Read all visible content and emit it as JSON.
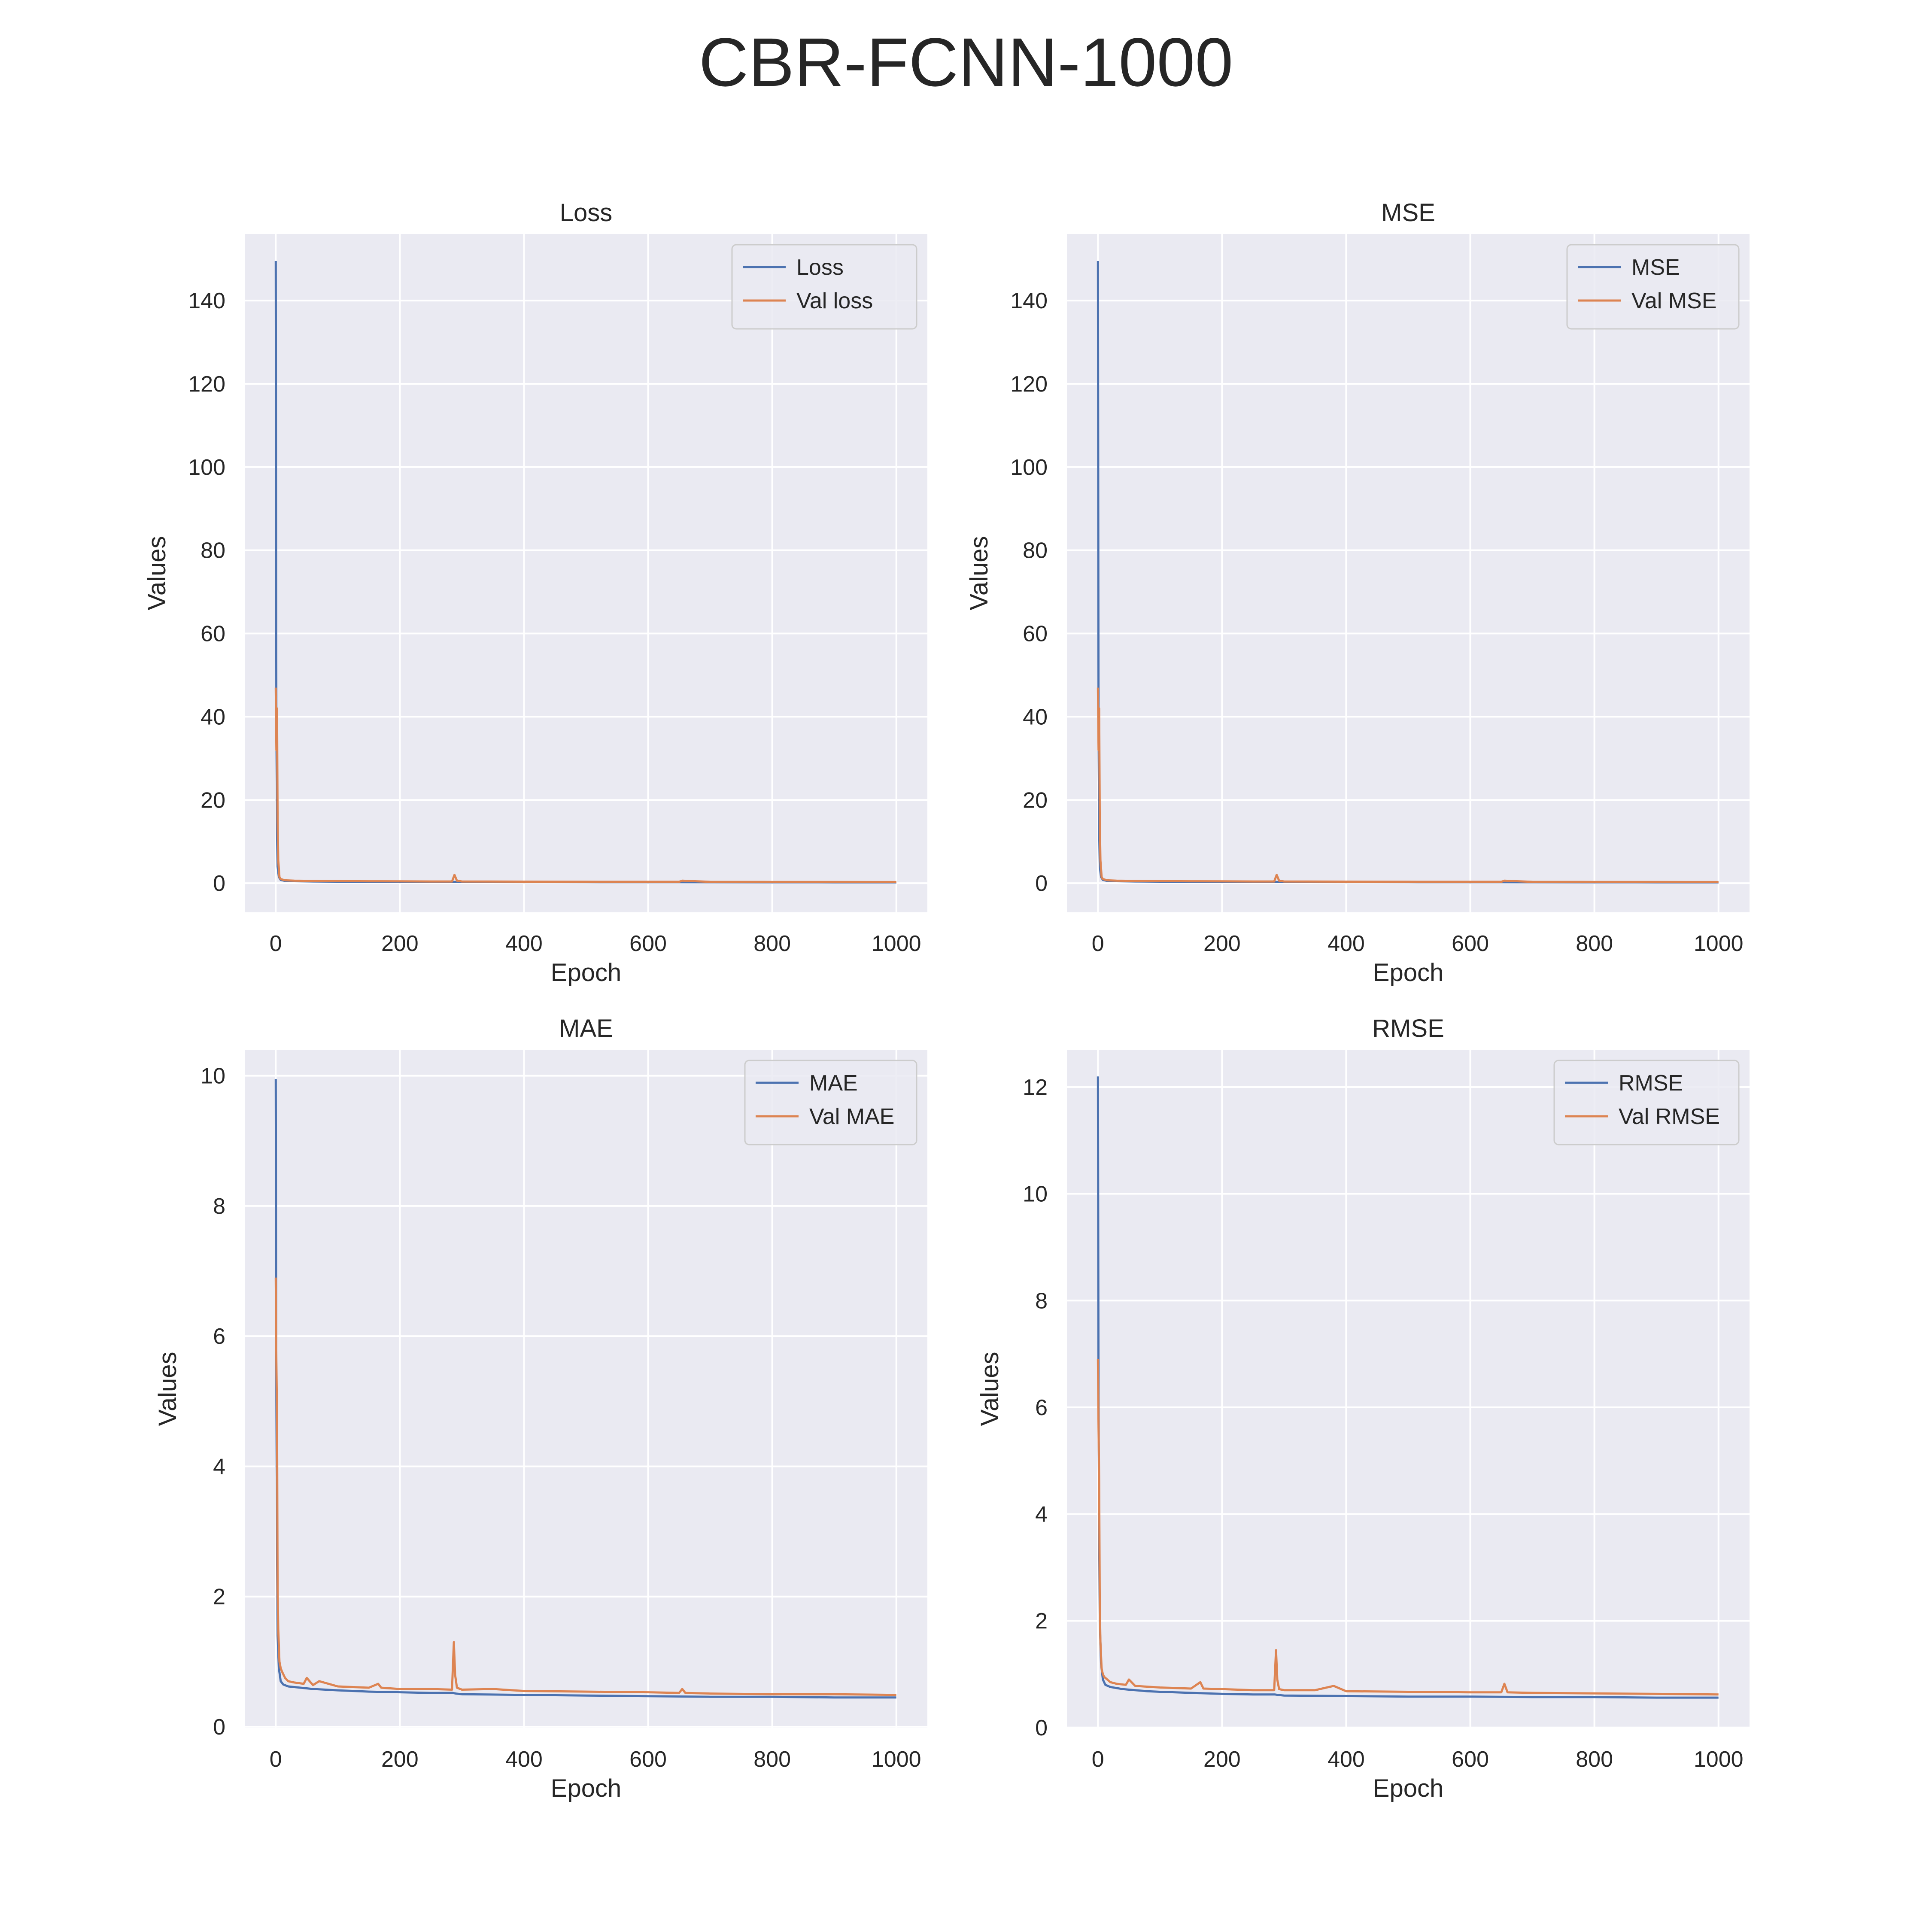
{
  "figure": {
    "title": "CBR-FCNN-1000"
  },
  "colors": {
    "train": "#4c72b0",
    "val": "#dd8452",
    "background": "#eaeaf2",
    "grid": "#ffffff"
  },
  "chart_data": [
    {
      "type": "line",
      "title": "Loss",
      "xlabel": "Epoch",
      "ylabel": "Values",
      "xlim": [
        -50,
        1050
      ],
      "ylim": [
        -7,
        156
      ],
      "xticks": [
        0,
        200,
        400,
        600,
        800,
        1000
      ],
      "yticks": [
        0,
        20,
        40,
        60,
        80,
        100,
        120,
        140
      ],
      "legend": "upper right",
      "grid": true,
      "series": [
        {
          "name": "Loss",
          "color": "#4c72b0",
          "x": [
            0,
            1,
            2,
            3,
            5,
            8,
            15,
            30,
            60,
            100,
            150,
            200,
            250,
            285,
            290,
            300,
            400,
            500,
            600,
            650,
            700,
            800,
            900,
            1000
          ],
          "y": [
            149.5,
            38,
            12,
            4,
            1.5,
            0.8,
            0.55,
            0.48,
            0.42,
            0.38,
            0.34,
            0.32,
            0.31,
            0.3,
            0.3,
            0.28,
            0.26,
            0.24,
            0.23,
            0.23,
            0.22,
            0.21,
            0.2,
            0.19
          ]
        },
        {
          "name": "Val loss",
          "color": "#dd8452",
          "x": [
            0,
            1,
            2,
            3,
            4,
            6,
            8,
            15,
            30,
            60,
            100,
            150,
            200,
            250,
            284,
            288,
            292,
            300,
            400,
            500,
            600,
            650,
            655,
            700,
            800,
            900,
            1000
          ],
          "y": [
            47,
            32,
            42,
            15,
            5.5,
            1.5,
            1.0,
            0.7,
            0.6,
            0.55,
            0.5,
            0.47,
            0.45,
            0.42,
            0.42,
            2.0,
            0.6,
            0.42,
            0.38,
            0.35,
            0.33,
            0.33,
            0.6,
            0.32,
            0.3,
            0.29,
            0.28
          ]
        }
      ]
    },
    {
      "type": "line",
      "title": "MSE",
      "xlabel": "Epoch",
      "ylabel": "Values",
      "xlim": [
        -50,
        1050
      ],
      "ylim": [
        -7,
        156
      ],
      "xticks": [
        0,
        200,
        400,
        600,
        800,
        1000
      ],
      "yticks": [
        0,
        20,
        40,
        60,
        80,
        100,
        120,
        140
      ],
      "legend": "upper right",
      "grid": true,
      "series": [
        {
          "name": "MSE",
          "color": "#4c72b0",
          "x": [
            0,
            1,
            2,
            3,
            5,
            8,
            15,
            30,
            60,
            100,
            150,
            200,
            250,
            285,
            290,
            300,
            400,
            500,
            600,
            650,
            700,
            800,
            900,
            1000
          ],
          "y": [
            149.5,
            38,
            12,
            4,
            1.5,
            0.8,
            0.55,
            0.48,
            0.42,
            0.38,
            0.34,
            0.32,
            0.31,
            0.3,
            0.3,
            0.28,
            0.26,
            0.24,
            0.23,
            0.23,
            0.22,
            0.21,
            0.2,
            0.19
          ]
        },
        {
          "name": "Val MSE",
          "color": "#dd8452",
          "x": [
            0,
            1,
            2,
            3,
            4,
            6,
            8,
            15,
            30,
            60,
            100,
            150,
            200,
            250,
            284,
            288,
            292,
            300,
            400,
            500,
            600,
            650,
            655,
            700,
            800,
            900,
            1000
          ],
          "y": [
            47,
            32,
            42,
            15,
            5.5,
            1.5,
            1.0,
            0.7,
            0.6,
            0.55,
            0.5,
            0.47,
            0.45,
            0.42,
            0.42,
            2.0,
            0.6,
            0.42,
            0.38,
            0.35,
            0.33,
            0.33,
            0.6,
            0.32,
            0.3,
            0.29,
            0.28
          ]
        }
      ]
    },
    {
      "type": "line",
      "title": "MAE",
      "xlabel": "Epoch",
      "ylabel": "Values",
      "xlim": [
        -50,
        1050
      ],
      "ylim": [
        -0.02,
        10.4
      ],
      "xticks": [
        0,
        200,
        400,
        600,
        800,
        1000
      ],
      "yticks": [
        0,
        2,
        4,
        6,
        8,
        10
      ],
      "legend": "upper right",
      "grid": true,
      "series": [
        {
          "name": "MAE",
          "color": "#4c72b0",
          "x": [
            0,
            1,
            2,
            3,
            5,
            8,
            12,
            20,
            40,
            60,
            80,
            100,
            150,
            200,
            250,
            285,
            290,
            300,
            400,
            500,
            600,
            700,
            800,
            900,
            1000
          ],
          "y": [
            9.95,
            5.0,
            2.8,
            1.4,
            0.9,
            0.7,
            0.65,
            0.62,
            0.6,
            0.58,
            0.57,
            0.56,
            0.54,
            0.53,
            0.52,
            0.52,
            0.51,
            0.5,
            0.49,
            0.48,
            0.47,
            0.46,
            0.46,
            0.45,
            0.45
          ]
        },
        {
          "name": "Val MAE",
          "color": "#dd8452",
          "x": [
            0,
            1,
            2,
            3,
            4,
            6,
            8,
            10,
            15,
            20,
            30,
            45,
            50,
            60,
            70,
            100,
            150,
            165,
            170,
            200,
            250,
            284,
            287,
            289,
            292,
            300,
            350,
            400,
            500,
            600,
            650,
            655,
            660,
            700,
            800,
            900,
            1000
          ],
          "y": [
            6.9,
            5.6,
            4.8,
            2.1,
            1.5,
            1.0,
            0.9,
            0.85,
            0.75,
            0.7,
            0.68,
            0.66,
            0.75,
            0.64,
            0.7,
            0.62,
            0.6,
            0.66,
            0.6,
            0.58,
            0.58,
            0.57,
            1.3,
            0.8,
            0.6,
            0.57,
            0.58,
            0.55,
            0.54,
            0.53,
            0.52,
            0.58,
            0.52,
            0.51,
            0.5,
            0.5,
            0.49
          ]
        }
      ]
    },
    {
      "type": "line",
      "title": "RMSE",
      "xlabel": "Epoch",
      "ylabel": "Values",
      "xlim": [
        -50,
        1050
      ],
      "ylim": [
        -0.01,
        12.7
      ],
      "xticks": [
        0,
        200,
        400,
        600,
        800,
        1000
      ],
      "yticks": [
        0,
        2,
        4,
        6,
        8,
        10,
        12
      ],
      "legend": "upper right",
      "grid": true,
      "series": [
        {
          "name": "RMSE",
          "color": "#4c72b0",
          "x": [
            0,
            1,
            2,
            3,
            5,
            8,
            12,
            20,
            40,
            60,
            80,
            100,
            150,
            200,
            250,
            285,
            290,
            300,
            400,
            500,
            600,
            700,
            800,
            900,
            1000
          ],
          "y": [
            12.2,
            6.2,
            3.5,
            2.0,
            1.2,
            0.9,
            0.8,
            0.76,
            0.72,
            0.7,
            0.68,
            0.67,
            0.65,
            0.63,
            0.62,
            0.62,
            0.61,
            0.6,
            0.59,
            0.58,
            0.58,
            0.57,
            0.57,
            0.56,
            0.56
          ]
        },
        {
          "name": "Val RMSE",
          "color": "#dd8452",
          "x": [
            0,
            1,
            2,
            3,
            4,
            6,
            8,
            10,
            15,
            20,
            30,
            45,
            50,
            60,
            100,
            150,
            165,
            170,
            200,
            250,
            284,
            287,
            289,
            292,
            300,
            350,
            380,
            400,
            500,
            600,
            650,
            655,
            660,
            700,
            800,
            900,
            1000
          ],
          "y": [
            6.9,
            5.6,
            4.6,
            2.3,
            1.6,
            1.1,
            1.0,
            0.95,
            0.9,
            0.85,
            0.82,
            0.8,
            0.9,
            0.78,
            0.75,
            0.73,
            0.85,
            0.73,
            0.72,
            0.7,
            0.7,
            1.45,
            0.9,
            0.72,
            0.7,
            0.7,
            0.78,
            0.68,
            0.67,
            0.66,
            0.66,
            0.82,
            0.66,
            0.65,
            0.64,
            0.63,
            0.62
          ]
        }
      ]
    }
  ]
}
